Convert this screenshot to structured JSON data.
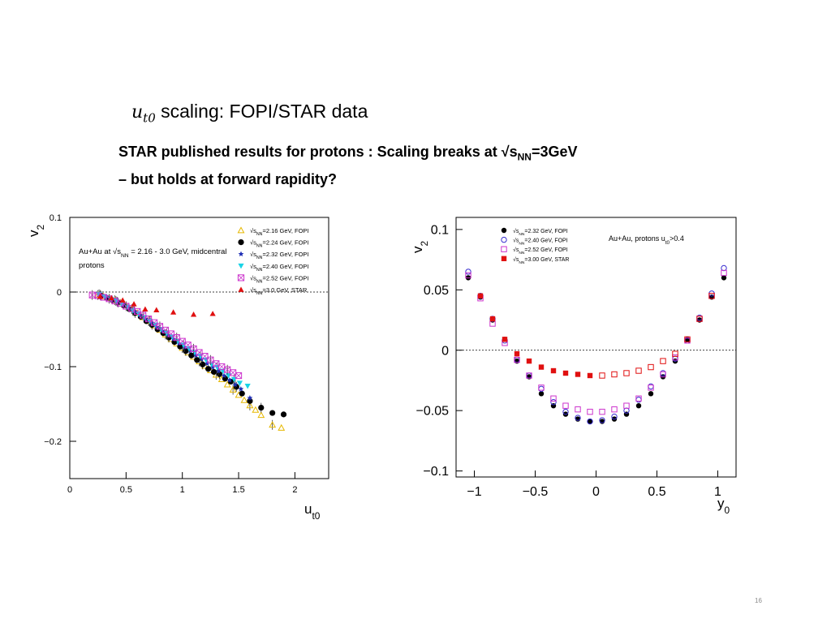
{
  "slide": {
    "title_var": "u",
    "title_var_sub": "t0",
    "title_rest": " scaling: FOPI/STAR data",
    "subtitle_line1_a": "STAR published results for protons : Scaling breaks at √s",
    "subtitle_line1_sub": "NN",
    "subtitle_line1_b": "=3GeV",
    "subtitle_line2": "– but holds at forward rapidity?",
    "page_number": "16"
  },
  "chart_data": [
    {
      "id": "left",
      "type": "scatter",
      "xlabel": "u",
      "xlabel_sub": "t0",
      "ylabel": "v",
      "ylabel_sub": "2",
      "xlim": [
        0,
        2.3
      ],
      "ylim": [
        -0.25,
        0.1
      ],
      "xticks": [
        "0",
        "0.5",
        "1",
        "1.5",
        "2"
      ],
      "xtick_values": [
        0,
        0.5,
        1,
        1.5,
        2
      ],
      "yticks": [
        "0.1",
        "0",
        "−0.1",
        "−0.2"
      ],
      "ytick_values": [
        0.1,
        0,
        -0.1,
        -0.2
      ],
      "zero_line": true,
      "annotation_line1_a": "Au+Au at ",
      "annotation_line1_s": "√s",
      "annotation_line1_sub": "NN",
      "annotation_line1_b": " = 2.16 - 3.0 GeV, midcentral",
      "annotation_line2": "protons",
      "legend_position": "top-right",
      "series": [
        {
          "name": "=2.16 GeV, FOPI",
          "marker": "triangle-open",
          "color": "#e6b800",
          "x": [
            0.25,
            0.3,
            0.35,
            0.4,
            0.45,
            0.5,
            0.55,
            0.6,
            0.65,
            0.7,
            0.75,
            0.8,
            0.85,
            0.9,
            0.95,
            1.0,
            1.05,
            1.1,
            1.15,
            1.2,
            1.25,
            1.3,
            1.35,
            1.4,
            1.45,
            1.5,
            1.55,
            1.6,
            1.65,
            1.7,
            1.8,
            1.88
          ],
          "y": [
            -0.004,
            -0.006,
            -0.008,
            -0.011,
            -0.014,
            -0.018,
            -0.023,
            -0.028,
            -0.034,
            -0.039,
            -0.045,
            -0.051,
            -0.057,
            -0.063,
            -0.069,
            -0.075,
            -0.081,
            -0.087,
            -0.093,
            -0.099,
            -0.105,
            -0.111,
            -0.117,
            -0.124,
            -0.131,
            -0.138,
            -0.145,
            -0.152,
            -0.158,
            -0.165,
            -0.178,
            -0.182
          ]
        },
        {
          "name": "=2.24 GeV, FOPI",
          "marker": "circle",
          "color": "#000000",
          "x": [
            0.28,
            0.33,
            0.38,
            0.43,
            0.48,
            0.53,
            0.58,
            0.63,
            0.68,
            0.73,
            0.78,
            0.83,
            0.88,
            0.93,
            0.98,
            1.03,
            1.08,
            1.13,
            1.18,
            1.23,
            1.28,
            1.33,
            1.38,
            1.43,
            1.48,
            1.53,
            1.6,
            1.7,
            1.8,
            1.9
          ],
          "y": [
            -0.005,
            -0.008,
            -0.011,
            -0.014,
            -0.018,
            -0.023,
            -0.028,
            -0.033,
            -0.039,
            -0.044,
            -0.05,
            -0.055,
            -0.061,
            -0.067,
            -0.073,
            -0.079,
            -0.085,
            -0.091,
            -0.097,
            -0.103,
            -0.107,
            -0.11,
            -0.116,
            -0.12,
            -0.127,
            -0.136,
            -0.146,
            -0.155,
            -0.162,
            -0.164
          ]
        },
        {
          "name": "=2.32 GeV, FOPI",
          "marker": "star",
          "color": "#1f2fb5",
          "x": [
            0.27,
            0.32,
            0.37,
            0.42,
            0.47,
            0.52,
            0.57,
            0.62,
            0.67,
            0.72,
            0.77,
            0.82,
            0.87,
            0.92,
            0.97,
            1.02,
            1.07,
            1.12,
            1.17,
            1.22,
            1.27,
            1.32,
            1.37,
            1.42,
            1.47,
            1.52,
            1.6
          ],
          "y": [
            -0.004,
            -0.007,
            -0.01,
            -0.013,
            -0.017,
            -0.021,
            -0.026,
            -0.031,
            -0.036,
            -0.041,
            -0.047,
            -0.052,
            -0.058,
            -0.063,
            -0.069,
            -0.074,
            -0.079,
            -0.085,
            -0.09,
            -0.096,
            -0.101,
            -0.106,
            -0.112,
            -0.118,
            -0.124,
            -0.13,
            -0.142
          ]
        },
        {
          "name": "=2.40 GeV, FOPI",
          "marker": "triangle-down",
          "color": "#19d3e6",
          "x": [
            0.26,
            0.31,
            0.36,
            0.41,
            0.46,
            0.51,
            0.56,
            0.61,
            0.66,
            0.71,
            0.76,
            0.81,
            0.86,
            0.91,
            0.96,
            1.01,
            1.06,
            1.11,
            1.16,
            1.21,
            1.26,
            1.31,
            1.36,
            1.41,
            1.46,
            1.51,
            1.58
          ],
          "y": [
            -0.003,
            -0.006,
            -0.009,
            -0.012,
            -0.016,
            -0.02,
            -0.025,
            -0.029,
            -0.034,
            -0.039,
            -0.044,
            -0.05,
            -0.055,
            -0.06,
            -0.066,
            -0.071,
            -0.076,
            -0.081,
            -0.086,
            -0.091,
            -0.097,
            -0.101,
            -0.106,
            -0.112,
            -0.117,
            -0.122,
            -0.126
          ]
        },
        {
          "name": "=2.52 GeV, FOPI",
          "marker": "square-open-x",
          "color": "#cc33cc",
          "x": [
            0.2,
            0.25,
            0.3,
            0.35,
            0.4,
            0.45,
            0.5,
            0.55,
            0.6,
            0.65,
            0.7,
            0.75,
            0.8,
            0.85,
            0.9,
            0.95,
            1.0,
            1.05,
            1.1,
            1.15,
            1.2,
            1.25,
            1.3,
            1.35,
            1.4,
            1.45,
            1.5
          ],
          "y": [
            -0.004,
            -0.005,
            -0.007,
            -0.009,
            -0.012,
            -0.015,
            -0.019,
            -0.022,
            -0.026,
            -0.031,
            -0.036,
            -0.041,
            -0.046,
            -0.051,
            -0.056,
            -0.061,
            -0.066,
            -0.071,
            -0.076,
            -0.081,
            -0.086,
            -0.091,
            -0.096,
            -0.1,
            -0.104,
            -0.108,
            -0.112
          ]
        },
        {
          "name": "=3.0 GeV, STAR",
          "marker": "triangle",
          "color": "#e01010",
          "x": [
            0.27,
            0.37,
            0.47,
            0.57,
            0.67,
            0.77,
            0.92,
            1.1,
            1.27
          ],
          "y": [
            -0.006,
            -0.008,
            -0.011,
            -0.016,
            -0.023,
            -0.024,
            -0.027,
            -0.03,
            -0.029
          ]
        }
      ]
    },
    {
      "id": "right",
      "type": "scatter",
      "xlabel": "y",
      "xlabel_sub": "0",
      "ylabel": "v",
      "ylabel_sub": "2",
      "xlim": [
        -1.15,
        1.15
      ],
      "ylim": [
        -0.105,
        0.11
      ],
      "xticks": [
        "−1",
        "−0.5",
        "0",
        "0.5",
        "1"
      ],
      "xtick_values": [
        -1,
        -0.5,
        0,
        0.5,
        1
      ],
      "yticks": [
        "0.1",
        "0.05",
        "0",
        "−0.05",
        "−0.1"
      ],
      "ytick_values": [
        0.1,
        0.05,
        0,
        -0.05,
        -0.1
      ],
      "zero_line": true,
      "annotation_a": "Au+Au, protons u",
      "annotation_sub": "t0",
      "annotation_b": ">0.4",
      "legend_position": "top-left",
      "series": [
        {
          "name": "=2.32  GeV, FOPI",
          "marker": "circle",
          "color": "#000000",
          "x": [
            -1.05,
            -0.95,
            -0.85,
            -0.75,
            -0.65,
            -0.55,
            -0.45,
            -0.35,
            -0.25,
            -0.15,
            -0.05,
            0.05,
            0.15,
            0.25,
            0.35,
            0.45,
            0.55,
            0.65,
            0.75,
            0.85,
            0.95,
            1.05
          ],
          "y": [
            0.06,
            0.044,
            0.025,
            0.009,
            -0.009,
            -0.022,
            -0.036,
            -0.046,
            -0.053,
            -0.057,
            -0.059,
            -0.059,
            -0.057,
            -0.053,
            -0.046,
            -0.036,
            -0.022,
            -0.009,
            0.009,
            0.025,
            0.044,
            0.06
          ]
        },
        {
          "name": "=2.40 GeV, FOPI",
          "marker": "circle-open",
          "color": "#3a2fd0",
          "x": [
            -1.05,
            -0.95,
            -0.85,
            -0.75,
            -0.65,
            -0.55,
            -0.45,
            -0.35,
            -0.25,
            -0.15,
            -0.05,
            0.05,
            0.15,
            0.25,
            0.35,
            0.45,
            0.55,
            0.65,
            0.75,
            0.85,
            0.95,
            1.05
          ],
          "y": [
            0.065,
            0.045,
            0.026,
            0.008,
            -0.008,
            -0.021,
            -0.032,
            -0.043,
            -0.051,
            -0.056,
            -0.059,
            -0.058,
            -0.055,
            -0.05,
            -0.041,
            -0.03,
            -0.019,
            -0.007,
            0.008,
            0.027,
            0.047,
            0.068
          ]
        },
        {
          "name": "=2.52 GeV, FOPI",
          "marker": "square-open",
          "color": "#cc33cc",
          "x": [
            -1.05,
            -0.95,
            -0.85,
            -0.75,
            -0.65,
            -0.55,
            -0.45,
            -0.35,
            -0.25,
            -0.15,
            -0.05,
            0.05,
            0.15,
            0.25,
            0.35,
            0.45,
            0.55,
            0.65,
            0.75,
            0.85,
            0.95,
            1.05
          ],
          "y": [
            0.062,
            0.043,
            0.022,
            0.006,
            -0.008,
            -0.021,
            -0.031,
            -0.04,
            -0.046,
            -0.049,
            -0.051,
            -0.051,
            -0.049,
            -0.046,
            -0.04,
            -0.031,
            -0.02,
            -0.006,
            0.008,
            0.026,
            0.045,
            0.064
          ]
        },
        {
          "name": "=3.00 GeV, STAR",
          "marker": "square",
          "color": "#e01010",
          "x": [
            -0.95,
            -0.85,
            -0.75,
            -0.65,
            -0.55,
            -0.45,
            -0.35,
            -0.25,
            -0.15,
            -0.05
          ],
          "y": [
            0.045,
            0.026,
            0.009,
            -0.003,
            -0.009,
            -0.014,
            -0.017,
            -0.019,
            -0.02,
            -0.021
          ]
        },
        {
          "name": "STAR reflected",
          "marker": "square-open",
          "color": "#e01010",
          "in_legend": false,
          "x": [
            0.05,
            0.15,
            0.25,
            0.35,
            0.45,
            0.55,
            0.65,
            0.75,
            0.85,
            0.95
          ],
          "y": [
            -0.021,
            -0.02,
            -0.019,
            -0.017,
            -0.014,
            -0.009,
            -0.003,
            0.009,
            0.026,
            0.045
          ]
        }
      ]
    }
  ]
}
